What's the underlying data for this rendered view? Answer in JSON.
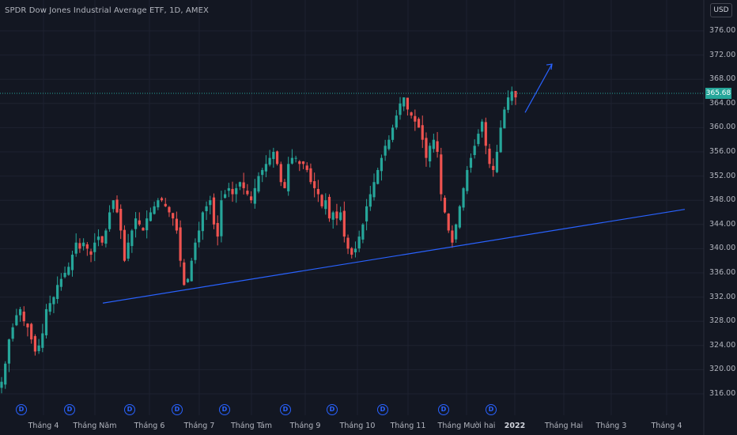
{
  "header": {
    "title": "SPDR Dow Jones Industrial Average ETF, 1D, AMEX"
  },
  "currency_label": "USD",
  "last_price_label": "365.68",
  "colors": {
    "background": "#131722",
    "up": "#26a69a",
    "down": "#ef5350",
    "trendline": "#2962ff",
    "grid": "#1e2230"
  },
  "dividend_marker": "D",
  "chart_data": {
    "type": "candlestick",
    "title": "SPDR Dow Jones Industrial Average ETF, 1D, AMEX",
    "ylim": [
      313,
      378
    ],
    "yticks": [
      "316.00",
      "320.00",
      "324.00",
      "328.00",
      "332.00",
      "336.00",
      "340.00",
      "344.00",
      "348.00",
      "352.00",
      "356.00",
      "360.00",
      "364.00",
      "368.00",
      "372.00",
      "376.00"
    ],
    "xticks": [
      "Tháng 4",
      "Tháng Năm",
      "Tháng 6",
      "Tháng 7",
      "Tháng Tám",
      "Tháng 9",
      "Tháng 10",
      "Tháng 11",
      "Tháng Mười hai",
      "2022",
      "Tháng Hai",
      "Tháng 3",
      "Tháng 4"
    ],
    "last_price": 365.68,
    "dividend_markers_count": 10,
    "trendline_support": {
      "start_value": 331,
      "end_value": 346.5
    },
    "arrow_target_value": 370.5,
    "close_series": [
      318,
      321,
      325,
      327,
      329,
      330,
      328,
      327,
      325,
      323,
      324,
      326,
      330,
      331,
      332,
      334,
      335,
      336,
      337,
      339,
      341,
      340,
      341,
      340,
      339,
      341,
      342,
      341,
      343,
      346,
      348,
      346,
      343,
      338,
      341,
      343,
      345,
      344,
      343,
      345,
      346,
      347,
      348,
      348,
      347,
      346,
      345,
      343,
      338,
      334,
      335,
      338,
      341,
      343,
      346,
      347,
      348,
      344,
      342,
      348,
      349,
      350,
      349,
      350,
      351,
      350,
      349,
      348,
      350,
      352,
      353,
      354,
      355,
      356,
      354,
      351,
      350,
      354,
      355,
      355,
      354,
      354,
      353,
      351,
      350,
      349,
      347,
      348,
      345,
      346,
      345,
      346,
      342,
      340,
      339,
      340,
      342,
      344,
      347,
      349,
      351,
      353,
      355,
      357,
      358,
      360,
      362,
      364,
      365,
      363,
      362,
      361,
      360,
      358,
      355,
      357,
      358,
      356,
      349,
      346,
      343,
      341,
      344,
      347,
      350,
      353,
      355,
      357,
      359,
      361,
      357,
      354,
      353,
      356,
      360,
      363,
      365,
      366,
      365
    ]
  }
}
